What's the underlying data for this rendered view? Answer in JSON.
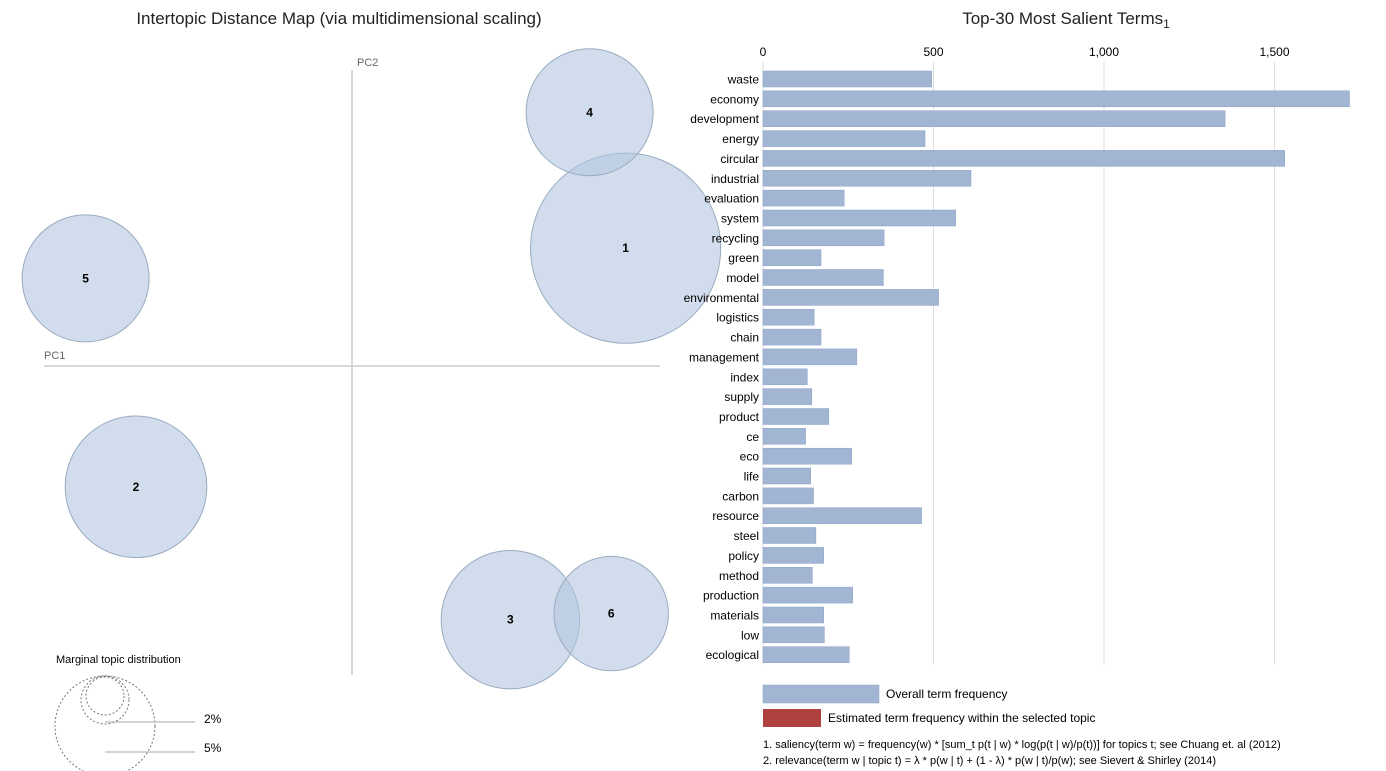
{
  "chart_data": [
    {
      "type": "scatter",
      "title": "Intertopic Distance Map (via multidimensional scaling)",
      "xlabel": "PC1",
      "ylabel": "PC2",
      "grid": false,
      "topics": [
        {
          "label": "1",
          "pc1": 0.38,
          "pc2": 0.39,
          "size": 8.3
        },
        {
          "label": "2",
          "pc1": -0.3,
          "pc2": -0.4,
          "size": 4.6
        },
        {
          "label": "3",
          "pc1": 0.22,
          "pc2": -0.84,
          "size": 4.4
        },
        {
          "label": "4",
          "pc1": 0.33,
          "pc2": 0.84,
          "size": 3.7
        },
        {
          "label": "5",
          "pc1": -0.37,
          "pc2": 0.29,
          "size": 3.7
        },
        {
          "label": "6",
          "pc1": 0.36,
          "pc2": -0.82,
          "size": 3.0
        }
      ],
      "marginal": {
        "title": "Marginal topic distribution",
        "labels": [
          "2%",
          "5%"
        ]
      }
    },
    {
      "type": "bar",
      "orientation": "horizontal",
      "title": "Top-30 Most Salient Terms",
      "title_sup": "1",
      "xlim": [
        0,
        1720
      ],
      "ticks": [
        "0",
        "500",
        "1,000",
        "1,500"
      ],
      "tick_values": [
        0,
        500,
        1000,
        1500
      ],
      "categories": [
        "waste",
        "economy",
        "development",
        "energy",
        "circular",
        "industrial",
        "evaluation",
        "system",
        "recycling",
        "green",
        "model",
        "environmental",
        "logistics",
        "chain",
        "management",
        "index",
        "supply",
        "product",
        "ce",
        "eco",
        "life",
        "carbon",
        "resource",
        "steel",
        "policy",
        "method",
        "production",
        "materials",
        "low",
        "ecological"
      ],
      "series": [
        {
          "name": "Overall term frequency",
          "values": [
            495,
            1720,
            1355,
            475,
            1530,
            610,
            238,
            565,
            355,
            170,
            353,
            515,
            150,
            170,
            275,
            130,
            143,
            193,
            125,
            260,
            140,
            148,
            465,
            155,
            178,
            145,
            263,
            178,
            180,
            253
          ]
        }
      ],
      "legend": [
        "Overall term frequency",
        "Estimated term frequency within the selected topic"
      ],
      "colors": {
        "overall": "#a2b6d4",
        "overall_stroke": "#8aa1c7",
        "topic": "#b0413e",
        "bubble": "#b3c6e0",
        "bubble_stroke": "#9aabbf"
      },
      "footnotes": [
        "1. saliency(term w) = frequency(w) * [sum_t p(t | w) * log(p(t | w)/p(t))] for topics t; see Chuang et. al (2012)",
        "2. relevance(term w | topic t) = λ * p(w | t) + (1 - λ) * p(w | t)/p(w); see Sievert & Shirley (2014)"
      ]
    }
  ]
}
